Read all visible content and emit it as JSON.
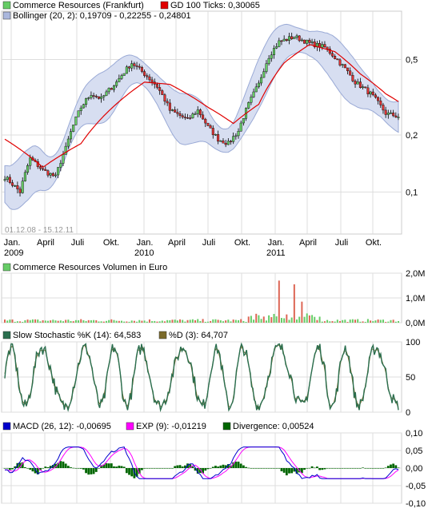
{
  "chart_data": [
    {
      "type": "candlestick",
      "legend": [
        {
          "label": "Commerce Resources (Frankfurt)",
          "color": "#66cc66"
        },
        {
          "label": "GD 100 Ticks: 0,30065",
          "color": "#e00000"
        },
        {
          "label": "Bollinger (20, 2): 0,19709 - 0,22255 - 0,24801",
          "color": "#aab7dd"
        }
      ],
      "date_range_label": "01.12.08 - 15.12.11",
      "x_ticks": [
        "Jan.",
        "April",
        "Juli",
        "Okt.",
        "Jan.",
        "April",
        "Juli",
        "Okt.",
        "Jan.",
        "April",
        "Juli",
        "Okt."
      ],
      "x_years": [
        "2009",
        "2010",
        "2011"
      ],
      "y_scale": "log",
      "y_ticks": [
        "0,5",
        "0,2",
        "0,1"
      ],
      "y_tick_values": [
        0.5,
        0.2,
        0.1
      ],
      "ylim": [
        0.06,
        0.9
      ],
      "price_anchors": {
        "x": [
          0,
          6,
          10,
          15,
          20,
          24,
          30,
          34,
          38,
          44,
          50,
          55,
          60,
          65,
          72,
          76,
          80,
          84,
          88,
          92,
          96,
          100,
          104,
          108,
          114,
          120,
          126,
          132,
          138,
          144,
          150,
          155
        ],
        "y": [
          0.12,
          0.1,
          0.15,
          0.13,
          0.12,
          0.17,
          0.28,
          0.33,
          0.31,
          0.38,
          0.48,
          0.42,
          0.36,
          0.27,
          0.24,
          0.27,
          0.22,
          0.19,
          0.18,
          0.21,
          0.29,
          0.37,
          0.52,
          0.62,
          0.66,
          0.61,
          0.58,
          0.48,
          0.38,
          0.33,
          0.26,
          0.25
        ]
      },
      "ma_anchors": {
        "x": [
          0,
          15,
          30,
          45,
          55,
          65,
          80,
          90,
          100,
          110,
          120,
          130,
          140,
          150,
          155
        ],
        "y": [
          0.19,
          0.135,
          0.18,
          0.3,
          0.38,
          0.37,
          0.28,
          0.23,
          0.29,
          0.48,
          0.6,
          0.55,
          0.42,
          0.33,
          0.3
        ]
      }
    },
    {
      "type": "bar",
      "legend": [
        {
          "label": "Commerce Resources Volumen in Euro",
          "color": "#66cc66"
        }
      ],
      "y_ticks": [
        "2,0M",
        "1,0M",
        "0,0M"
      ],
      "y_tick_values": [
        2.0,
        1.0,
        0.0
      ],
      "ylim": [
        0,
        2.0
      ]
    },
    {
      "type": "line",
      "legend": [
        {
          "label": "Slow Stochastic %K (14): 64,583",
          "color": "#2a6e4e"
        },
        {
          "label": "%D (3): 64,707",
          "color": "#7a6a2a"
        }
      ],
      "y_ticks": [
        "100",
        "50",
        "0"
      ],
      "y_tick_values": [
        100,
        50,
        0
      ],
      "ylim": [
        0,
        100
      ]
    },
    {
      "type": "line",
      "legend": [
        {
          "label": "MACD (26, 12): -0,00695",
          "color": "#0000cc"
        },
        {
          "label": "EXP (9): -0,01219",
          "color": "#ff00ff"
        },
        {
          "label": "Divergence: 0,00524",
          "color": "#006600"
        }
      ],
      "y_ticks": [
        "0,10",
        "0,05",
        "0,00",
        "-0,05",
        "-0,10"
      ],
      "y_tick_values": [
        0.1,
        0.05,
        0.0,
        -0.05,
        -0.1
      ],
      "ylim": [
        -0.1,
        0.1
      ]
    }
  ]
}
